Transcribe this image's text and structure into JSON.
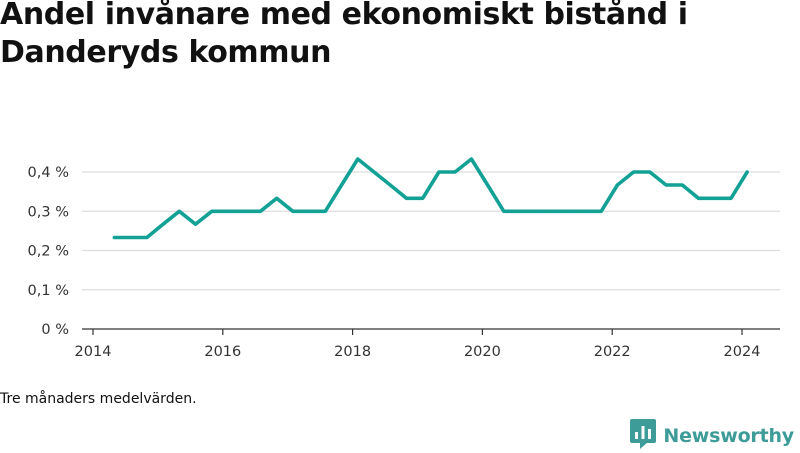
{
  "title": "Andel invånare med ekonomiskt bistånd i Danderyds kommun",
  "footnote": "Tre månaders medelvärden.",
  "brand": {
    "name": "Newsworthy",
    "logo_icon": "bar-chart-speech-bubble-icon",
    "color": "#3d9b98"
  },
  "colors": {
    "line": "#13a196",
    "grid": "#dddddd",
    "axis": "#333333"
  },
  "chart_data": {
    "type": "line",
    "title": "Andel invånare med ekonomiskt bistånd i Danderyds kommun",
    "xlabel": "",
    "ylabel": "",
    "xlim": [
      2014,
      2024.6
    ],
    "ylim": [
      0,
      0.4
    ],
    "x_ticks": [
      {
        "value": 2014,
        "label": "2014"
      },
      {
        "value": 2016,
        "label": "2016"
      },
      {
        "value": 2018,
        "label": "2018"
      },
      {
        "value": 2020,
        "label": "2020"
      },
      {
        "value": 2022,
        "label": "2022"
      },
      {
        "value": 2024,
        "label": "2024"
      }
    ],
    "y_ticks": [
      {
        "value": 0,
        "label": "0 %"
      },
      {
        "value": 0.1,
        "label": "0,1 %"
      },
      {
        "value": 0.2,
        "label": "0,2 %"
      },
      {
        "value": 0.3,
        "label": "0,3 %"
      },
      {
        "value": 0.4,
        "label": "0,4 %"
      }
    ],
    "grid": true,
    "series": [
      {
        "values": [
          {
            "x": 2014.33,
            "y": 0.233
          },
          {
            "x": 2014.58,
            "y": 0.233
          },
          {
            "x": 2014.83,
            "y": 0.233
          },
          {
            "x": 2015.08,
            "y": 0.267
          },
          {
            "x": 2015.33,
            "y": 0.3
          },
          {
            "x": 2015.58,
            "y": 0.267
          },
          {
            "x": 2015.83,
            "y": 0.3
          },
          {
            "x": 2016.08,
            "y": 0.3
          },
          {
            "x": 2016.33,
            "y": 0.3
          },
          {
            "x": 2016.58,
            "y": 0.3
          },
          {
            "x": 2016.83,
            "y": 0.333
          },
          {
            "x": 2017.08,
            "y": 0.3
          },
          {
            "x": 2017.33,
            "y": 0.3
          },
          {
            "x": 2017.58,
            "y": 0.3
          },
          {
            "x": 2017.83,
            "y": 0.367
          },
          {
            "x": 2018.08,
            "y": 0.433
          },
          {
            "x": 2018.33,
            "y": 0.4
          },
          {
            "x": 2018.58,
            "y": 0.367
          },
          {
            "x": 2018.83,
            "y": 0.333
          },
          {
            "x": 2019.08,
            "y": 0.333
          },
          {
            "x": 2019.33,
            "y": 0.4
          },
          {
            "x": 2019.58,
            "y": 0.4
          },
          {
            "x": 2019.83,
            "y": 0.433
          },
          {
            "x": 2020.08,
            "y": 0.367
          },
          {
            "x": 2020.33,
            "y": 0.3
          },
          {
            "x": 2020.58,
            "y": 0.3
          },
          {
            "x": 2020.83,
            "y": 0.3
          },
          {
            "x": 2021.08,
            "y": 0.3
          },
          {
            "x": 2021.33,
            "y": 0.3
          },
          {
            "x": 2021.58,
            "y": 0.3
          },
          {
            "x": 2021.83,
            "y": 0.3
          },
          {
            "x": 2022.08,
            "y": 0.367
          },
          {
            "x": 2022.33,
            "y": 0.4
          },
          {
            "x": 2022.58,
            "y": 0.4
          },
          {
            "x": 2022.83,
            "y": 0.367
          },
          {
            "x": 2023.08,
            "y": 0.367
          },
          {
            "x": 2023.33,
            "y": 0.333
          },
          {
            "x": 2023.58,
            "y": 0.333
          },
          {
            "x": 2023.83,
            "y": 0.333
          },
          {
            "x": 2024.08,
            "y": 0.4
          }
        ]
      }
    ]
  }
}
